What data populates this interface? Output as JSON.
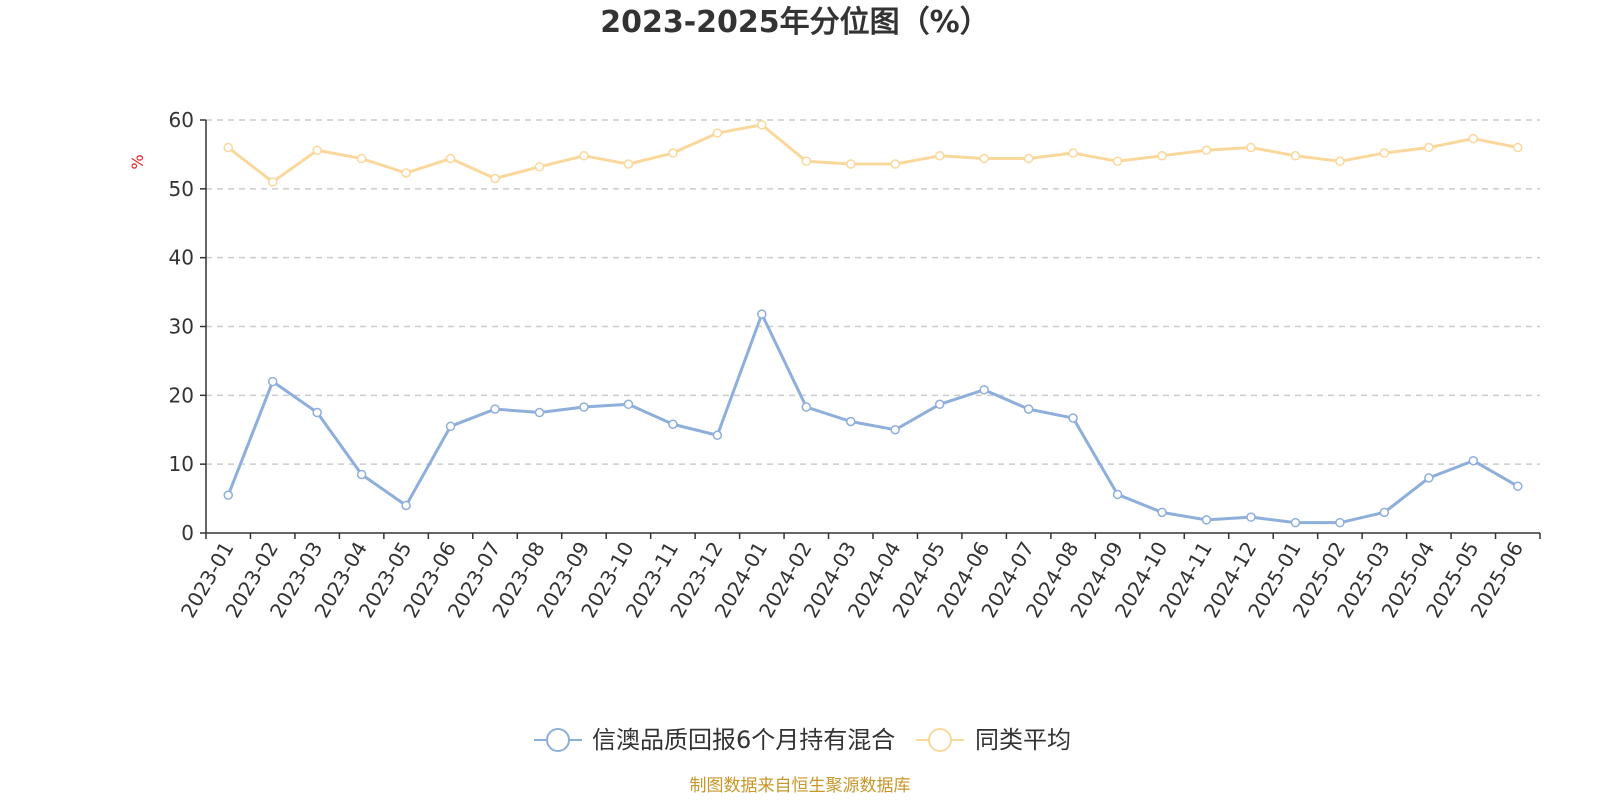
{
  "chart_data": {
    "type": "line",
    "title": "2023-2025年分位图（%）",
    "ylabel": "%",
    "xlabel": "",
    "ylim": [
      0,
      60
    ],
    "yticks": [
      0,
      10,
      20,
      30,
      40,
      50,
      60
    ],
    "grid": true,
    "legend_position": "bottom",
    "categories": [
      "2023-01",
      "2023-02",
      "2023-03",
      "2023-04",
      "2023-05",
      "2023-06",
      "2023-07",
      "2023-08",
      "2023-09",
      "2023-10",
      "2023-11",
      "2023-12",
      "2024-01",
      "2024-02",
      "2024-03",
      "2024-04",
      "2024-05",
      "2024-06",
      "2024-07",
      "2024-08",
      "2024-09",
      "2024-10",
      "2024-11",
      "2024-12",
      "2025-01",
      "2025-02",
      "2025-03",
      "2025-04",
      "2025-05",
      "2025-06"
    ],
    "series": [
      {
        "name": "信澳品质回报6个月持有混合",
        "color": "#8eaedb",
        "values": [
          5.5,
          22.0,
          17.5,
          8.5,
          4.0,
          15.5,
          18.0,
          17.5,
          18.3,
          18.7,
          15.8,
          14.2,
          31.8,
          18.3,
          16.2,
          15.0,
          18.7,
          20.8,
          18.0,
          16.7,
          5.6,
          3.0,
          1.9,
          2.3,
          1.5,
          1.5,
          3.0,
          8.0,
          10.5,
          6.8
        ]
      },
      {
        "name": "同类平均",
        "color": "#fad89c",
        "values": [
          56.0,
          51.0,
          55.6,
          54.4,
          52.3,
          54.4,
          51.5,
          53.2,
          54.8,
          53.6,
          55.2,
          58.1,
          59.3,
          54.0,
          53.6,
          53.6,
          54.8,
          54.4,
          54.4,
          55.2,
          54.0,
          54.8,
          55.6,
          56.0,
          54.8,
          54.0,
          55.2,
          56.0,
          57.3,
          56.0
        ]
      }
    ]
  },
  "source_text": "制图数据来自恒生聚源数据库"
}
